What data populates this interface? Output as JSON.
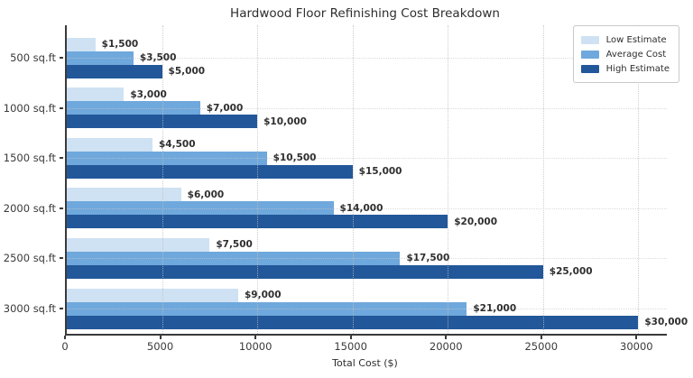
{
  "chart_data": {
    "type": "bar",
    "orientation": "horizontal",
    "title": "Hardwood Floor Refinishing Cost Breakdown",
    "xlabel": "Total Cost ($)",
    "ylabel": "",
    "categories": [
      "500 sq.ft",
      "1000 sq.ft",
      "1500 sq.ft",
      "2000 sq.ft",
      "2500 sq.ft",
      "3000 sq.ft"
    ],
    "series": [
      {
        "name": "Low Estimate",
        "color": "#cfe2f3",
        "values": [
          1500,
          3000,
          4500,
          6000,
          7500,
          9000
        ],
        "labels": [
          "$1,500",
          "$3,000",
          "$4,500",
          "$6,000",
          "$7,500",
          "$9,000"
        ]
      },
      {
        "name": "Average Cost",
        "color": "#6fa8dc",
        "values": [
          3500,
          7000,
          10500,
          14000,
          17500,
          21000
        ],
        "labels": [
          "$3,500",
          "$7,000",
          "$10,500",
          "$14,000",
          "$17,500",
          "$21,000"
        ]
      },
      {
        "name": "High Estimate",
        "color": "#22579a",
        "values": [
          5000,
          10000,
          15000,
          20000,
          25000,
          30000
        ],
        "labels": [
          "$5,000",
          "$10,000",
          "$15,000",
          "$20,000",
          "$25,000",
          "$30,000"
        ]
      }
    ],
    "xlim": [
      0,
      31500
    ],
    "xticks": [
      0,
      5000,
      10000,
      15000,
      20000,
      25000,
      30000
    ],
    "xtick_labels": [
      "0",
      "5000",
      "10000",
      "15000",
      "20000",
      "25000",
      "30000"
    ],
    "grid": true,
    "grid_style": "dotted",
    "legend_position": "upper right",
    "background_color": "#ffffff"
  }
}
